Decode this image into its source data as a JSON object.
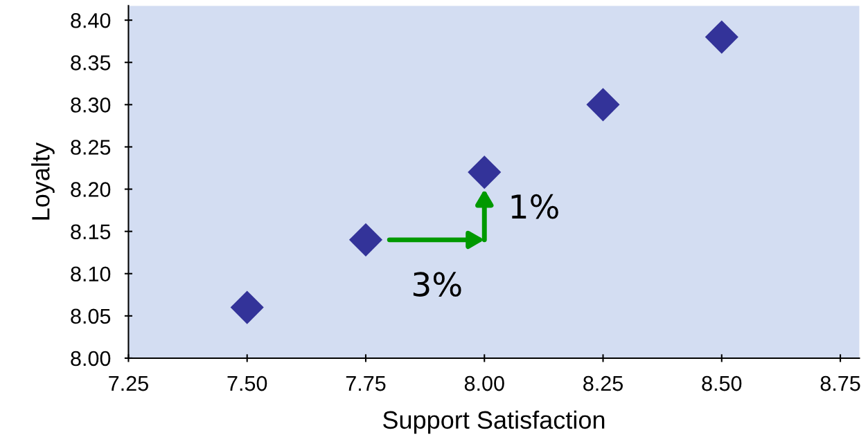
{
  "chart_data": {
    "type": "scatter",
    "xlabel": "Support Satisfaction",
    "ylabel": "Loyalty",
    "x": [
      7.5,
      7.75,
      8.0,
      8.25,
      8.5
    ],
    "values": [
      8.06,
      8.14,
      8.22,
      8.3,
      8.38
    ],
    "color": "#333399",
    "marker": "diamond",
    "grid": false,
    "xlim": [
      7.25,
      8.79
    ],
    "xticks": [
      {
        "value": 7.25,
        "label": "7.25"
      },
      {
        "value": 7.5,
        "label": "7.50"
      },
      {
        "value": 7.75,
        "label": "7.75"
      },
      {
        "value": 8.0,
        "label": "8.00"
      },
      {
        "value": 8.25,
        "label": "8.25"
      },
      {
        "value": 8.5,
        "label": "8.50"
      },
      {
        "value": 8.75,
        "label": "8.75"
      }
    ],
    "ylim": [
      8.0,
      8.417
    ],
    "yticks": [
      {
        "value": 8.0,
        "label": "8.00"
      },
      {
        "value": 8.05,
        "label": "8.05"
      },
      {
        "value": 8.1,
        "label": "8.10"
      },
      {
        "value": 8.15,
        "label": "8.15"
      },
      {
        "value": 8.2,
        "label": "8.20"
      },
      {
        "value": 8.25,
        "label": "8.25"
      },
      {
        "value": 8.3,
        "label": "8.30"
      },
      {
        "value": 8.35,
        "label": "8.35"
      },
      {
        "value": 8.4,
        "label": "8.40"
      }
    ],
    "annotations": [
      "3%",
      "1%"
    ]
  }
}
